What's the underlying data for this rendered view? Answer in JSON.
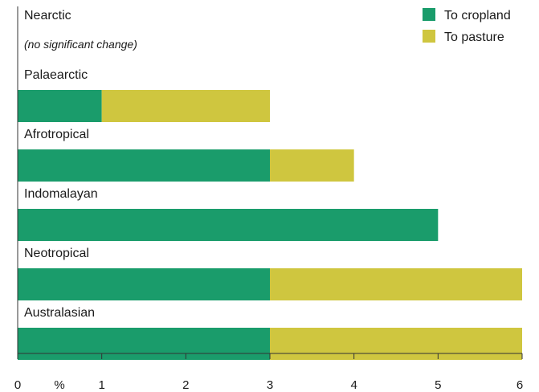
{
  "chart_data": {
    "type": "bar",
    "orientation": "horizontal",
    "stacked": true,
    "categories": [
      "Nearctic",
      "Palaearctic",
      "Afrotropical",
      "Indomalayan",
      "Neotropical",
      "Australasian"
    ],
    "category_notes": [
      "(no significant change)",
      "",
      "",
      "",
      "",
      ""
    ],
    "series": [
      {
        "name": "To cropland",
        "color": "#1a9c6b",
        "values": [
          0,
          1,
          3,
          5,
          3,
          3
        ]
      },
      {
        "name": "To pasture",
        "color": "#cfc63f",
        "values": [
          0,
          2,
          1,
          0,
          3,
          3
        ]
      }
    ],
    "xticks": [
      0,
      1,
      2,
      3,
      4,
      5,
      6
    ],
    "x_unit_label": "%",
    "xlim": [
      0,
      6
    ],
    "grid": false,
    "legend_position": "top-right"
  }
}
